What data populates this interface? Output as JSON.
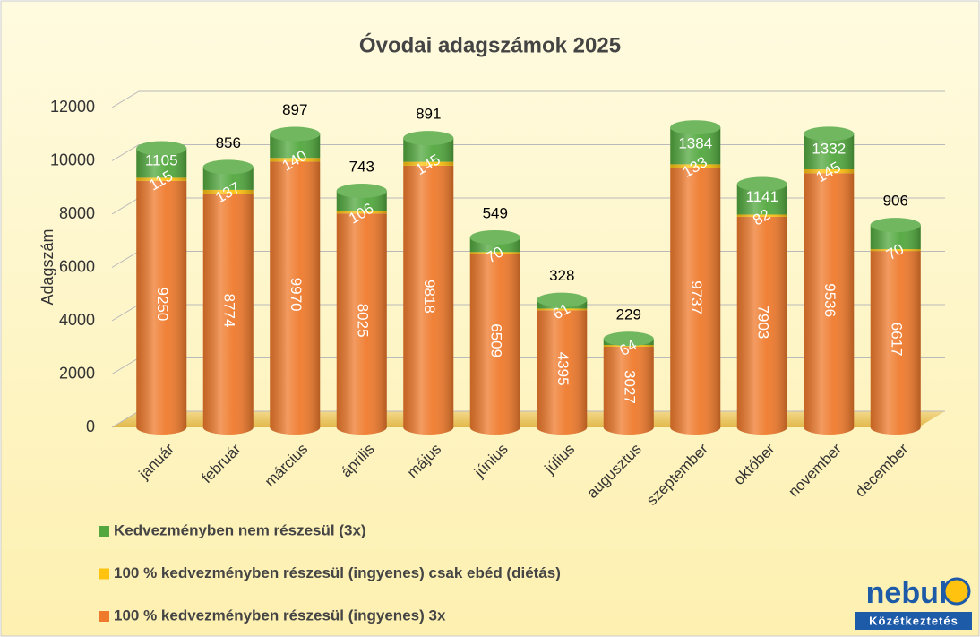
{
  "chart_data": {
    "type": "bar",
    "stacked": true,
    "title": "Óvodai adagszámok 2025",
    "y_label": "Adagszám",
    "categories": [
      "január",
      "február",
      "március",
      "április",
      "május",
      "június",
      "július",
      "augusztus",
      "szeptember",
      "október",
      "november",
      "december"
    ],
    "series": [
      {
        "name": "100 % kedvezményben részesül (ingyenes) 3x",
        "color": "#ef7a2c",
        "values": [
          9250,
          8774,
          9970,
          8025,
          9818,
          6509,
          4395,
          3027,
          9737,
          7903,
          9536,
          6617
        ]
      },
      {
        "name": "100 % kedvezményben részesül (ingyenes) csak ebéd (diétás)",
        "color": "#ffc20e",
        "values": [
          115,
          137,
          140,
          106,
          145,
          70,
          61,
          64,
          133,
          82,
          145,
          70
        ]
      },
      {
        "name": "Kedvezményben nem részesül (3x)",
        "color": "#52a83e",
        "values": [
          1105,
          856,
          897,
          743,
          891,
          549,
          328,
          229,
          1384,
          1141,
          1332,
          906
        ]
      }
    ],
    "ylim": [
      0,
      12000
    ],
    "yticks": [
      0,
      2000,
      4000,
      6000,
      8000,
      10000,
      12000
    ],
    "grid": true
  },
  "logo": {
    "name": "nebul",
    "tagline": "Közétkeztetés"
  }
}
